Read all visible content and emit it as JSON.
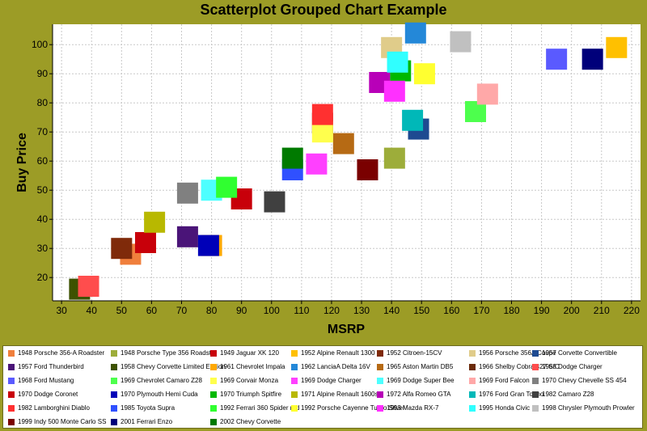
{
  "chart_data": {
    "type": "scatter",
    "title": "Scatterplot Grouped Chart Example",
    "xlabel": "MSRP",
    "ylabel": "Buy Price",
    "xlim": [
      27,
      223
    ],
    "ylim": [
      12,
      107
    ],
    "xticks": [
      30,
      40,
      50,
      60,
      70,
      80,
      90,
      100,
      110,
      120,
      130,
      140,
      150,
      160,
      170,
      180,
      190,
      200,
      210,
      220
    ],
    "yticks": [
      20,
      30,
      40,
      50,
      60,
      70,
      80,
      90,
      100
    ],
    "grid": true,
    "legend_position": "bottom",
    "series": [
      {
        "name": "1948 Porsche 356-A Roadster",
        "color": "#f07f3c",
        "points": [
          [
            53,
            28
          ]
        ]
      },
      {
        "name": "1948 Porsche Type 356 Roadster",
        "color": "#9dad3a",
        "points": [
          [
            141,
            61
          ]
        ]
      },
      {
        "name": "1949 Jaguar XK 120",
        "color": "#c8000a",
        "points": [
          [
            90,
            47
          ]
        ]
      },
      {
        "name": "1952 Alpine Renault 1300",
        "color": "#ffc000",
        "points": [
          [
            215,
            99
          ]
        ]
      },
      {
        "name": "1952 Citroen-15CV",
        "color": "#7f2a0a",
        "points": [
          [
            50,
            30
          ]
        ]
      },
      {
        "name": "1956 Porsche 356A Coupe",
        "color": "#e0cc8a",
        "points": [
          [
            140,
            99
          ]
        ]
      },
      {
        "name": "1957 Corvette Convertible",
        "color": "#1e4a91",
        "points": [
          [
            149,
            71
          ]
        ]
      },
      {
        "name": "1957 Ford Thunderbird",
        "color": "#4a1478",
        "points": [
          [
            72,
            34
          ]
        ]
      },
      {
        "name": "1958 Chevy Corvette Limited Edition",
        "color": "#3d5200",
        "points": [
          [
            36,
            16
          ]
        ]
      },
      {
        "name": "1961 Chevrolet Impala",
        "color": "#ffa800",
        "points": [
          [
            80,
            31
          ]
        ]
      },
      {
        "name": "1962 LanciaA Delta 16V",
        "color": "#2488d8",
        "points": [
          [
            148,
            104
          ]
        ]
      },
      {
        "name": "1965 Aston Martin DB5",
        "color": "#b66a14",
        "points": [
          [
            124,
            66
          ]
        ]
      },
      {
        "name": "1966 Shelby Cobra 427 S/C",
        "color": "#6b2a0a",
        "points": [
          [
            117,
            73
          ]
        ]
      },
      {
        "name": "1968 Dodge Charger",
        "color": "#ff4d4d",
        "points": [
          [
            39,
            17
          ]
        ]
      },
      {
        "name": "1968 Ford Mustang",
        "color": "#5a5aff",
        "points": [
          [
            195,
            95
          ]
        ]
      },
      {
        "name": "1969 Chevrolet Camaro Z28",
        "color": "#4dff4d",
        "points": [
          [
            168,
            77
          ]
        ]
      },
      {
        "name": "1969 Corvair Monza",
        "color": "#ffff4d",
        "points": [
          [
            117,
            70
          ]
        ]
      },
      {
        "name": "1969 Dodge Charger",
        "color": "#ff40ff",
        "points": [
          [
            115,
            59
          ]
        ]
      },
      {
        "name": "1969 Dodge Super Bee",
        "color": "#4dffff",
        "points": [
          [
            80,
            50
          ]
        ]
      },
      {
        "name": "1969 Ford Falcon",
        "color": "#ffa8a8",
        "points": [
          [
            172,
            83
          ]
        ]
      },
      {
        "name": "1970 Chevy Chevelle SS 454",
        "color": "#808080",
        "points": [
          [
            72,
            49
          ]
        ]
      },
      {
        "name": "1970 Dodge Coronet",
        "color": "#c8000a",
        "points": [
          [
            58,
            32
          ]
        ]
      },
      {
        "name": "1970 Plymouth Hemi Cuda",
        "color": "#0000b8",
        "points": [
          [
            79,
            31
          ]
        ]
      },
      {
        "name": "1970 Triumph Spitfire",
        "color": "#00b800",
        "points": [
          [
            143,
            91
          ]
        ]
      },
      {
        "name": "1971 Alpine Renault 1600s",
        "color": "#b8b800",
        "points": [
          [
            61,
            39
          ]
        ]
      },
      {
        "name": "1972 Alfa Romeo GTA",
        "color": "#b800b8",
        "points": [
          [
            136,
            87
          ]
        ]
      },
      {
        "name": "1976 Ford Gran Torino",
        "color": "#00b8b8",
        "points": [
          [
            147,
            74
          ]
        ]
      },
      {
        "name": "1982 Camaro Z28",
        "color": "#404040",
        "points": [
          [
            101,
            46
          ]
        ]
      },
      {
        "name": "1982 Lamborghini Diablo",
        "color": "#ff3030",
        "points": [
          [
            117,
            76
          ]
        ]
      },
      {
        "name": "1985 Toyota Supra",
        "color": "#3050ff",
        "points": [
          [
            107,
            57
          ]
        ]
      },
      {
        "name": "1992 Ferrari 360 Spider red",
        "color": "#30ff30",
        "points": [
          [
            85,
            51
          ]
        ]
      },
      {
        "name": "1992 Porsche Cayenne Turbo Silver",
        "color": "#ffff30",
        "points": [
          [
            151,
            90
          ]
        ]
      },
      {
        "name": "1993 Mazda RX-7",
        "color": "#ff30ff",
        "points": [
          [
            141,
            84
          ]
        ]
      },
      {
        "name": "1995 Honda Civic",
        "color": "#30ffff",
        "points": [
          [
            142,
            94
          ]
        ]
      },
      {
        "name": "1998 Chrysler Plymouth Prowler",
        "color": "#c0c0c0",
        "points": [
          [
            163,
            101
          ]
        ]
      },
      {
        "name": "1999 Indy 500 Monte Carlo SS",
        "color": "#7a0000",
        "points": [
          [
            132,
            57
          ]
        ]
      },
      {
        "name": "2001 Ferrari Enzo",
        "color": "#00007a",
        "points": [
          [
            207,
            95
          ]
        ]
      },
      {
        "name": "2002 Chevy Corvette",
        "color": "#007a00",
        "points": [
          [
            107,
            61
          ]
        ]
      }
    ]
  }
}
